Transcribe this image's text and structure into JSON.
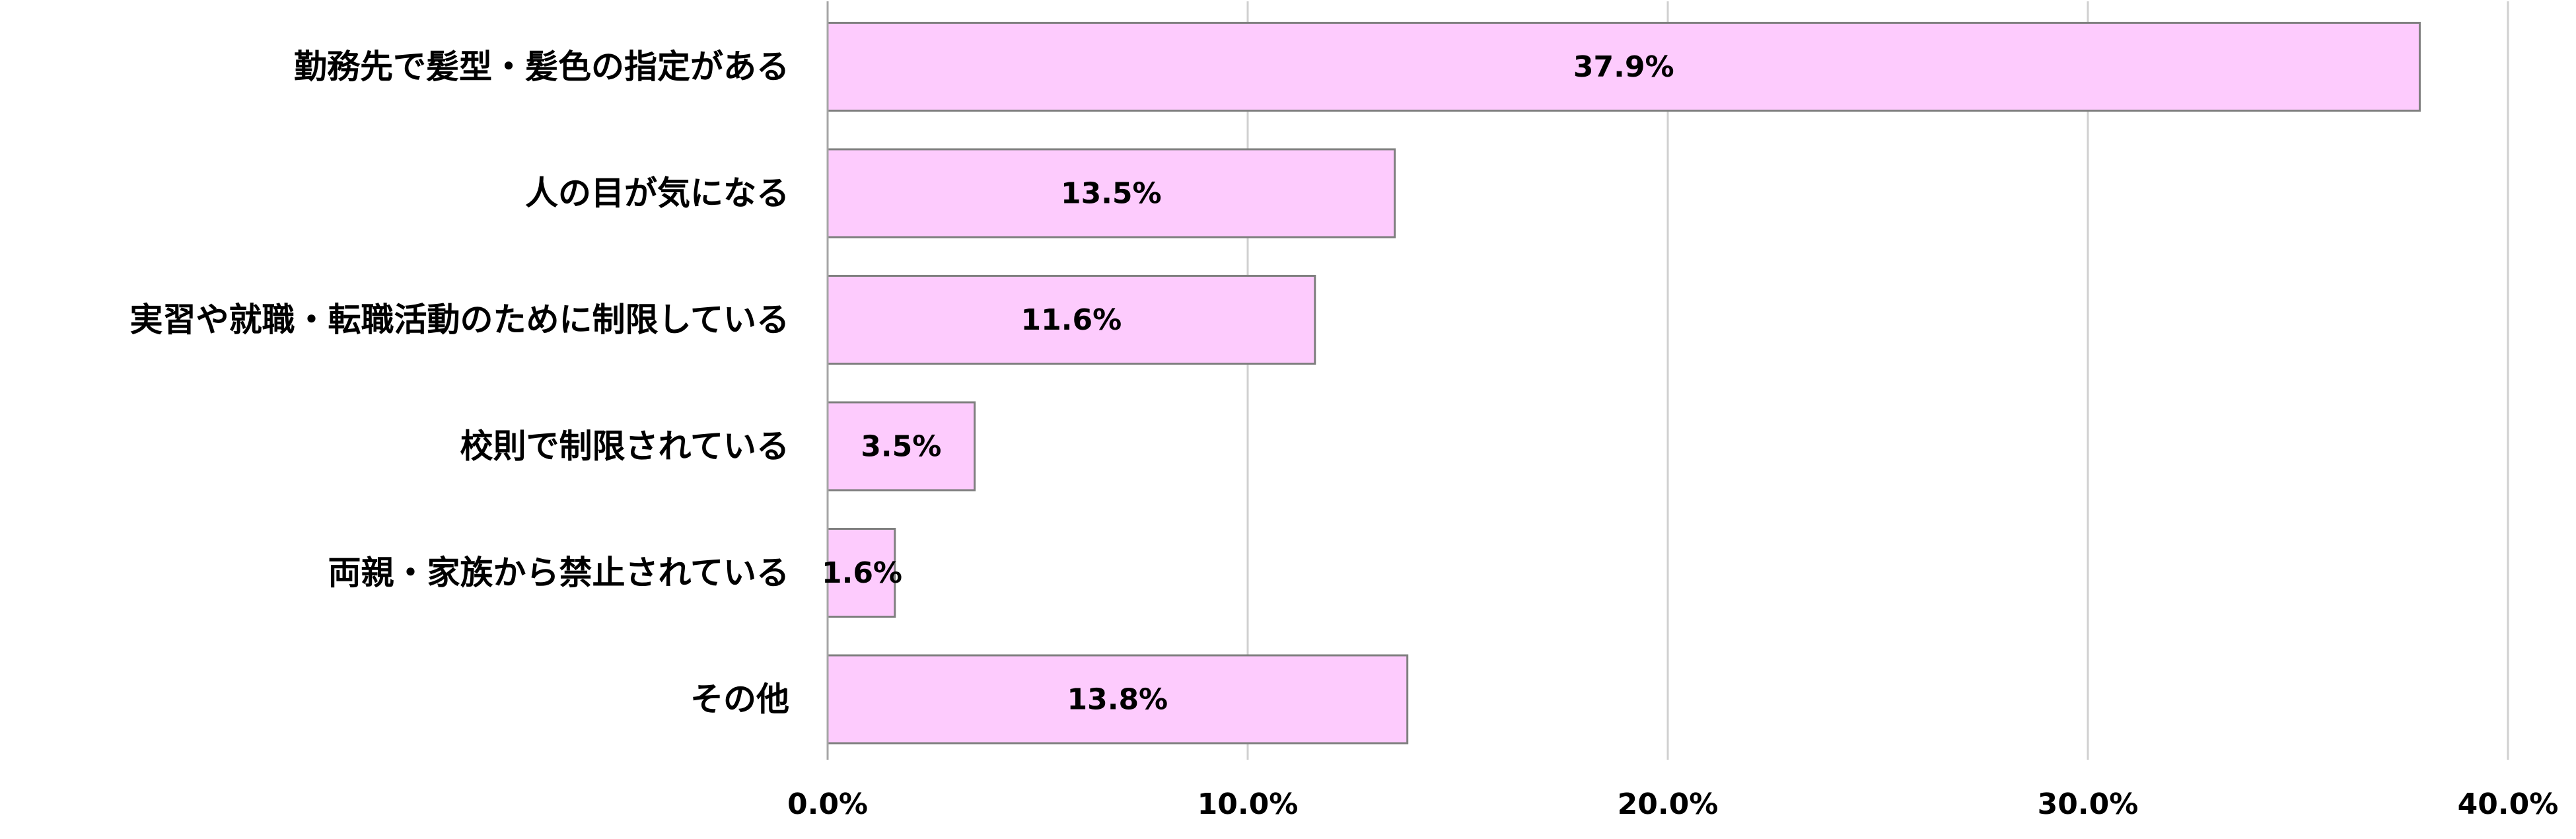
{
  "chart_data": {
    "type": "bar",
    "orientation": "horizontal",
    "categories": [
      "勤務先で髪型・髪色の指定がある",
      "人の目が気になる",
      "実習や就職・転職活動のために制限している",
      "校則で制限されている",
      "両親・家族から禁止されている",
      "その他"
    ],
    "values": [
      37.9,
      13.5,
      11.6,
      3.5,
      1.6,
      13.8
    ],
    "value_labels": [
      "37.9%",
      "13.5%",
      "11.6%",
      "3.5%",
      "1.6%",
      "13.8%"
    ],
    "xlim": [
      0,
      40
    ],
    "x_ticks": [
      0,
      10,
      20,
      30,
      40
    ],
    "x_tick_labels": [
      "0.0%",
      "10.0%",
      "20.0%",
      "30.0%",
      "40.0%"
    ],
    "grid": true,
    "legend": "none",
    "title": "",
    "xlabel": "",
    "ylabel": "",
    "colors": {
      "bar_fill": "#fdcbfd",
      "bar_stroke": "#7f7f7f",
      "grid": "#d0d0d0",
      "axis": "#a6a6a6"
    }
  }
}
